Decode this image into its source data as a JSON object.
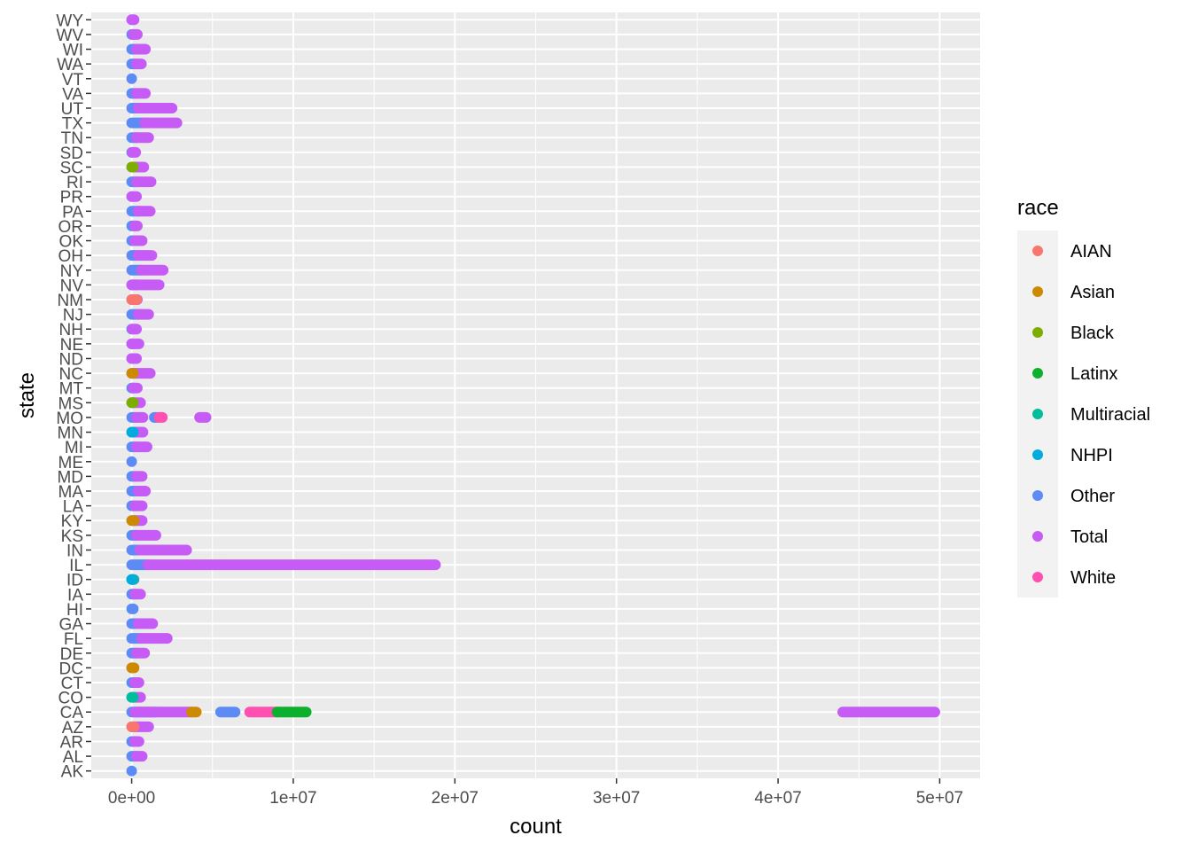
{
  "chart_data": {
    "type": "scatter",
    "xlabel": "count",
    "ylabel": "state",
    "xlim": [
      -2500000,
      52500000
    ],
    "x_ticks": [
      0,
      10000000,
      20000000,
      30000000,
      40000000,
      50000000
    ],
    "x_tick_labels": [
      "0e+00",
      "1e+07",
      "2e+07",
      "3e+07",
      "4e+07",
      "5e+07"
    ],
    "categories": [
      "AK",
      "AL",
      "AR",
      "AZ",
      "CA",
      "CO",
      "CT",
      "DC",
      "DE",
      "FL",
      "GA",
      "HI",
      "IA",
      "ID",
      "IL",
      "IN",
      "KS",
      "KY",
      "LA",
      "MA",
      "MD",
      "ME",
      "MI",
      "MN",
      "MO",
      "MS",
      "MT",
      "NC",
      "ND",
      "NE",
      "NH",
      "NJ",
      "NM",
      "NV",
      "NY",
      "OH",
      "OK",
      "OR",
      "PA",
      "PR",
      "RI",
      "SC",
      "SD",
      "TN",
      "TX",
      "UT",
      "VA",
      "VT",
      "WA",
      "WI",
      "WV",
      "WY"
    ],
    "grid": true,
    "legend": {
      "title": "race",
      "position": "right",
      "entries": [
        {
          "name": "AIAN",
          "color": "#F8766D"
        },
        {
          "name": "Asian",
          "color": "#C49A00"
        },
        {
          "name": "Black",
          "color": "#53B400"
        },
        {
          "name": "Latinx",
          "color": "#00C094"
        },
        {
          "name": "Multiracial",
          "color": "#00B6EB"
        },
        {
          "name": "NHPI",
          "color": "#06A4FF"
        },
        {
          "name": "Other",
          "color": "#A58AFF"
        },
        {
          "name": "Total",
          "color": "#FB61D7"
        },
        {
          "name": "White",
          "color": "#F8766D"
        }
      ]
    },
    "series_colors": {
      "AIAN": "#F8766D",
      "Asian": "#CD8A00",
      "Black": "#7CAE00",
      "Latinx": "#0CB02D",
      "Multiracial": "#00BE9B",
      "NHPI": "#00ABDD",
      "Other": "#5C8BF5",
      "Total": "#C75BF5",
      "White": "#FF4FB0"
    },
    "series": [
      {
        "name": "Other",
        "points": [
          [
            "AK",
            0,
            0
          ],
          [
            "AL",
            0,
            300000
          ],
          [
            "AR",
            0,
            200000
          ],
          [
            "AZ",
            0,
            150000
          ],
          [
            "CA",
            0,
            1500000
          ],
          [
            "CA",
            5500000,
            6400000
          ],
          [
            "CO",
            0,
            150000
          ],
          [
            "CT",
            0,
            200000
          ],
          [
            "DC",
            0,
            0
          ],
          [
            "DE",
            0,
            300000
          ],
          [
            "FL",
            0,
            600000
          ],
          [
            "GA",
            0,
            400000
          ],
          [
            "HI",
            0,
            100000
          ],
          [
            "IA",
            0,
            200000
          ],
          [
            "ID",
            0,
            150000
          ],
          [
            "IL",
            0,
            1000000
          ],
          [
            "IN",
            0,
            500000
          ],
          [
            "KS",
            0,
            300000
          ],
          [
            "KY",
            0,
            200000
          ],
          [
            "LA",
            0,
            200000
          ],
          [
            "MA",
            0,
            400000
          ],
          [
            "MD",
            0,
            300000
          ],
          [
            "ME",
            0,
            0
          ],
          [
            "MI",
            0,
            300000
          ],
          [
            "MN",
            0,
            200000
          ],
          [
            "MO",
            0,
            300000
          ],
          [
            "MO",
            1400000,
            1600000
          ],
          [
            "MS",
            0,
            100000
          ],
          [
            "MT",
            0,
            100000
          ],
          [
            "NC",
            0,
            300000
          ],
          [
            "ND",
            0,
            0
          ],
          [
            "NE",
            0,
            100000
          ],
          [
            "NH",
            0,
            50000
          ],
          [
            "NJ",
            0,
            400000
          ],
          [
            "NM",
            0,
            100000
          ],
          [
            "NV",
            0,
            300000
          ],
          [
            "NY",
            0,
            600000
          ],
          [
            "OH",
            0,
            400000
          ],
          [
            "OK",
            0,
            200000
          ],
          [
            "OR",
            0,
            200000
          ],
          [
            "PA",
            0,
            400000
          ],
          [
            "PR",
            0,
            0
          ],
          [
            "RI",
            0,
            300000
          ],
          [
            "SC",
            0,
            200000
          ],
          [
            "SD",
            0,
            50000
          ],
          [
            "TN",
            0,
            300000
          ],
          [
            "TX",
            0,
            800000
          ],
          [
            "UT",
            0,
            400000
          ],
          [
            "VA",
            0,
            300000
          ],
          [
            "VT",
            0,
            0
          ],
          [
            "WA",
            0,
            300000
          ],
          [
            "WI",
            0,
            300000
          ],
          [
            "WV",
            0,
            100000
          ],
          [
            "WY",
            0,
            0
          ]
        ]
      },
      {
        "name": "Total",
        "points": [
          [
            "AL",
            300000,
            650000
          ],
          [
            "AR",
            200000,
            450000
          ],
          [
            "AZ",
            200000,
            1050000
          ],
          [
            "CA",
            200000,
            3700000
          ],
          [
            "CA",
            44000000,
            49700000
          ],
          [
            "CO",
            200000,
            550000
          ],
          [
            "CT",
            200000,
            450000
          ],
          [
            "DE",
            300000,
            800000
          ],
          [
            "FL",
            600000,
            2200000
          ],
          [
            "GA",
            400000,
            1300000
          ],
          [
            "IA",
            200000,
            550000
          ],
          [
            "IL",
            1000000,
            18800000
          ],
          [
            "IN",
            500000,
            3400000
          ],
          [
            "KS",
            300000,
            1500000
          ],
          [
            "KY",
            200000,
            650000
          ],
          [
            "LA",
            200000,
            650000
          ],
          [
            "MA",
            400000,
            850000
          ],
          [
            "MD",
            300000,
            650000
          ],
          [
            "MI",
            300000,
            950000
          ],
          [
            "MN",
            200000,
            700000
          ],
          [
            "MO",
            300000,
            700000
          ],
          [
            "MO",
            4200000,
            4600000
          ],
          [
            "MS",
            100000,
            550000
          ],
          [
            "MT",
            100000,
            350000
          ],
          [
            "NC",
            300000,
            1150000
          ],
          [
            "ND",
            0,
            300000
          ],
          [
            "NE",
            0,
            450000
          ],
          [
            "NH",
            50000,
            300000
          ],
          [
            "NJ",
            400000,
            1050000
          ],
          [
            "NM",
            100000,
            350000
          ],
          [
            "NV",
            0,
            1700000
          ],
          [
            "NY",
            600000,
            1950000
          ],
          [
            "OH",
            400000,
            1250000
          ],
          [
            "OK",
            200000,
            650000
          ],
          [
            "OR",
            200000,
            350000
          ],
          [
            "PA",
            400000,
            1150000
          ],
          [
            "PR",
            0,
            300000
          ],
          [
            "RI",
            300000,
            1200000
          ],
          [
            "SC",
            200000,
            750000
          ],
          [
            "SD",
            50000,
            250000
          ],
          [
            "TN",
            300000,
            1050000
          ],
          [
            "TX",
            800000,
            2800000
          ],
          [
            "UT",
            400000,
            2500000
          ],
          [
            "VA",
            300000,
            850000
          ],
          [
            "WA",
            300000,
            600000
          ],
          [
            "WI",
            300000,
            850000
          ],
          [
            "WV",
            100000,
            350000
          ],
          [
            "WY",
            0,
            150000
          ]
        ]
      },
      {
        "name": "Asian",
        "points": [
          [
            "CA",
            3700000,
            4000000
          ],
          [
            "DC",
            0,
            150000
          ],
          [
            "KY",
            0,
            150000
          ],
          [
            "NC",
            0,
            100000
          ]
        ]
      },
      {
        "name": "White",
        "points": [
          [
            "CA",
            7300000,
            9000000
          ],
          [
            "MO",
            1700000,
            1900000
          ]
        ]
      },
      {
        "name": "Latinx",
        "points": [
          [
            "CA",
            9000000,
            10800000
          ]
        ]
      },
      {
        "name": "Multiracial",
        "points": [
          [
            "CO",
            0,
            100000
          ],
          [
            "ID",
            0,
            100000
          ]
        ]
      },
      {
        "name": "NHPI",
        "points": [
          [
            "MN",
            0,
            100000
          ],
          [
            "ID",
            0,
            50000
          ]
        ]
      },
      {
        "name": "Black",
        "points": [
          [
            "SC",
            0,
            100000
          ],
          [
            "MS",
            0,
            100000
          ]
        ]
      },
      {
        "name": "AIAN",
        "points": [
          [
            "NM",
            0,
            300000
          ],
          [
            "AZ",
            0,
            150000
          ]
        ]
      }
    ]
  }
}
